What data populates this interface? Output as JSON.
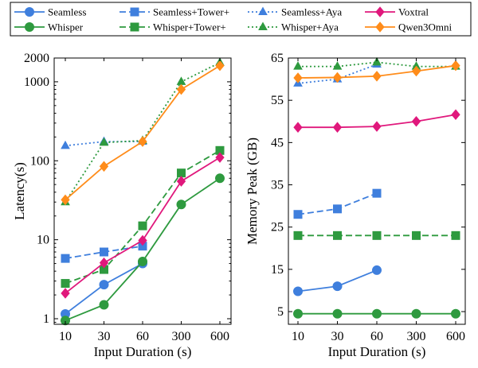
{
  "legend": {
    "rows": [
      [
        "Seamless",
        "Seamless+Tower+",
        "Seamless+Aya",
        "Voxtral"
      ],
      [
        "Whisper",
        "Whisper+Tower+",
        "Whisper+Aya",
        "Qwen3Omni"
      ]
    ]
  },
  "chart_data": [
    {
      "type": "line",
      "xlabel": "Input Duration (s)",
      "ylabel": "Latency(s)",
      "x_type": "categorical",
      "categories": [
        "10",
        "30",
        "60",
        "300",
        "600"
      ],
      "y_scale": "log",
      "ylim": [
        0.85,
        2000
      ],
      "yticks": [
        1,
        10,
        100,
        1000,
        2000
      ],
      "ytick_labels": [
        "1",
        "10",
        "100",
        "1000",
        "2000"
      ],
      "grid": false,
      "series": [
        {
          "name": "Seamless",
          "color": "#3f7fdd",
          "dash": "solid",
          "marker": "circle",
          "values": [
            1.15,
            2.7,
            5.0,
            null,
            null
          ]
        },
        {
          "name": "Whisper",
          "color": "#2e9a3f",
          "dash": "solid",
          "marker": "circle",
          "values": [
            0.95,
            1.5,
            5.3,
            28,
            60
          ]
        },
        {
          "name": "Seamless+Tower+",
          "color": "#3f7fdd",
          "dash": "dashed",
          "marker": "square",
          "values": [
            5.8,
            7.0,
            8.3,
            null,
            null
          ]
        },
        {
          "name": "Whisper+Tower+",
          "color": "#2e9a3f",
          "dash": "dashed",
          "marker": "square",
          "values": [
            2.8,
            4.2,
            15,
            70,
            135
          ]
        },
        {
          "name": "Seamless+Aya",
          "color": "#3f7fdd",
          "dash": "dotted",
          "marker": "triangle",
          "values": [
            155,
            175,
            175,
            null,
            null
          ]
        },
        {
          "name": "Whisper+Aya",
          "color": "#2e9a3f",
          "dash": "dotted",
          "marker": "triangle",
          "values": [
            30,
            170,
            180,
            1000,
            1750
          ]
        },
        {
          "name": "Voxtral",
          "color": "#e0187c",
          "dash": "solid",
          "marker": "diamond",
          "values": [
            2.1,
            5.1,
            9.8,
            55,
            110
          ]
        },
        {
          "name": "Qwen3Omni",
          "color": "#ff8c1a",
          "dash": "solid",
          "marker": "diamond",
          "values": [
            32,
            85,
            175,
            800,
            1600
          ]
        }
      ]
    },
    {
      "type": "line",
      "xlabel": "Input Duration (s)",
      "ylabel": "Memory Peak (GB)",
      "x_type": "categorical",
      "categories": [
        "10",
        "30",
        "60",
        "300",
        "600"
      ],
      "y_scale": "linear",
      "ylim": [
        2,
        65
      ],
      "yticks": [
        5,
        15,
        25,
        35,
        45,
        55,
        65
      ],
      "ytick_labels": [
        "5",
        "15",
        "25",
        "35",
        "45",
        "55",
        "65"
      ],
      "grid": false,
      "series": [
        {
          "name": "Seamless",
          "color": "#3f7fdd",
          "dash": "solid",
          "marker": "circle",
          "values": [
            9.8,
            11.0,
            14.8,
            null,
            null
          ]
        },
        {
          "name": "Whisper",
          "color": "#2e9a3f",
          "dash": "solid",
          "marker": "circle",
          "values": [
            4.5,
            4.5,
            4.5,
            4.5,
            4.5
          ]
        },
        {
          "name": "Seamless+Tower+",
          "color": "#3f7fdd",
          "dash": "dashed",
          "marker": "square",
          "values": [
            28.0,
            29.3,
            33.0,
            null,
            null
          ]
        },
        {
          "name": "Whisper+Tower+",
          "color": "#2e9a3f",
          "dash": "dashed",
          "marker": "square",
          "values": [
            23.0,
            23.0,
            23.0,
            23.0,
            23.0
          ]
        },
        {
          "name": "Seamless+Aya",
          "color": "#3f7fdd",
          "dash": "dotted",
          "marker": "triangle",
          "values": [
            59.0,
            60.0,
            63.5,
            null,
            null
          ]
        },
        {
          "name": "Whisper+Aya",
          "color": "#2e9a3f",
          "dash": "dotted",
          "marker": "triangle",
          "values": [
            63.0,
            63.0,
            64.0,
            63.0,
            63.0
          ]
        },
        {
          "name": "Voxtral",
          "color": "#e0187c",
          "dash": "solid",
          "marker": "diamond",
          "values": [
            48.6,
            48.6,
            48.8,
            50.0,
            51.6
          ]
        },
        {
          "name": "Qwen3Omni",
          "color": "#ff8c1a",
          "dash": "solid",
          "marker": "diamond",
          "values": [
            60.3,
            60.4,
            60.7,
            61.9,
            63.2
          ]
        }
      ]
    }
  ]
}
